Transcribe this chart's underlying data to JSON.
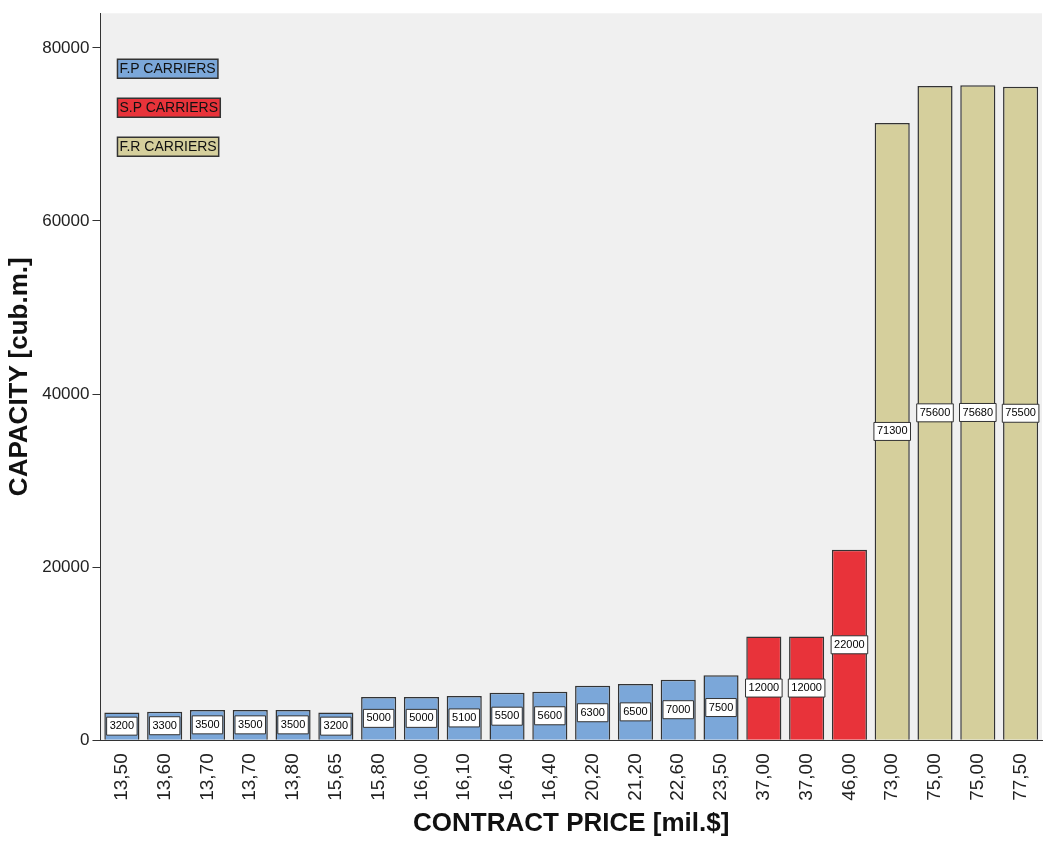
{
  "chart_data": {
    "type": "bar",
    "xlabel": "CONTRACT PRICE [mil.$]",
    "ylabel": "CAPACITY [cub.m.]",
    "categories": [
      "13,50",
      "13,60",
      "13,70",
      "13,70",
      "13,80",
      "15,65",
      "15,80",
      "16,00",
      "16,10",
      "16,40",
      "16,40",
      "20,20",
      "21,20",
      "22,60",
      "23,50",
      "37,00",
      "37,00",
      "46,00",
      "73,00",
      "75,00",
      "75,00",
      "77,50"
    ],
    "series": [
      {
        "name": "F.P CARRIERS",
        "color": "#7ba7d9",
        "values": [
          3200,
          3300,
          3500,
          3500,
          3500,
          3200,
          5000,
          5000,
          5100,
          5500,
          5600,
          6300,
          6500,
          7000,
          7500,
          null,
          null,
          null,
          null,
          null,
          null,
          null
        ]
      },
      {
        "name": "S.P CARRIERS",
        "color": "#e8333a",
        "values": [
          null,
          null,
          null,
          null,
          null,
          null,
          null,
          null,
          null,
          null,
          null,
          null,
          null,
          null,
          null,
          12000,
          12000,
          22000,
          null,
          null,
          null,
          null
        ]
      },
      {
        "name": "F.R CARRIERS",
        "color": "#d5cf9c",
        "values": [
          null,
          null,
          null,
          null,
          null,
          null,
          null,
          null,
          null,
          null,
          null,
          null,
          null,
          null,
          null,
          null,
          null,
          null,
          71300,
          75600,
          75680,
          75500
        ]
      }
    ],
    "ylim": [
      0,
      84000
    ],
    "yticks": [
      0,
      20000,
      40000,
      60000,
      80000
    ],
    "grid": false,
    "legend": "top left",
    "data_labels": true
  }
}
